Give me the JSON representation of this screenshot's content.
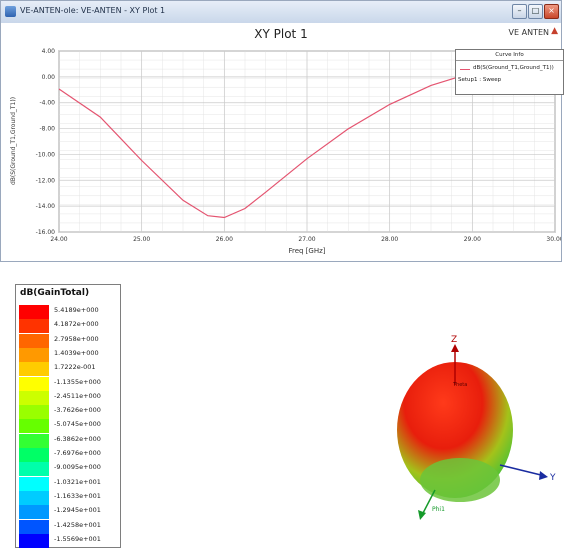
{
  "window": {
    "title": "VE-ANTEN-ole: VE-ANTEN - XY Plot 1",
    "minimize_glyph": "–",
    "maximize_glyph": "□",
    "close_glyph": "×"
  },
  "plot": {
    "title": "XY Plot 1",
    "brand": "VE ANTEN",
    "brand_mark": "▲",
    "legend": {
      "header": "Curve Info",
      "entries": [
        {
          "label": "dB(S(Ground_T1,Ground_T1))",
          "color": "#e45470"
        }
      ],
      "setup": "Setup1 : Sweep"
    }
  },
  "chart_data": {
    "type": "line",
    "title": "XY Plot 1",
    "xlabel": "Freq [GHz]",
    "ylabel": "dB(S(Ground_T1,Ground_T1))",
    "xlim": [
      24.0,
      30.0
    ],
    "ylim": [
      -16.0,
      4.0
    ],
    "x_ticks": [
      "24.00",
      "25.00",
      "26.00",
      "27.00",
      "28.00",
      "29.00",
      "30.00"
    ],
    "y_ticks": [
      "4.00",
      "0.00",
      "-4.00",
      "-8.00",
      "-10.00",
      "-12.00",
      "-14.00",
      "-16.00"
    ],
    "grid": true,
    "legend_position": "top-right",
    "series": [
      {
        "name": "dB(S(Ground_T1,Ground_T1))",
        "color": "#e45470",
        "x": [
          24.0,
          24.5,
          25.0,
          25.5,
          25.8,
          26.0,
          26.25,
          26.5,
          27.0,
          27.5,
          28.0,
          28.5,
          29.0,
          29.5,
          30.0
        ],
        "y": [
          -0.2,
          -3.3,
          -8.1,
          -12.5,
          -14.2,
          -14.4,
          -13.4,
          -11.6,
          -7.9,
          -4.6,
          -1.9,
          0.2,
          1.6,
          2.3,
          2.4
        ]
      }
    ]
  },
  "colorbar": {
    "title": "dB(GainTotal)",
    "entries": [
      {
        "label": "5.4189e+000",
        "color": "#ff0000"
      },
      {
        "label": "4.1872e+000",
        "color": "#ff3300"
      },
      {
        "label": "2.7958e+000",
        "color": "#ff6600"
      },
      {
        "label": "1.4039e+000",
        "color": "#ff9900"
      },
      {
        "label": "1.7222e-001",
        "color": "#ffcc00"
      },
      {
        "label": "-1.1355e+000",
        "color": "#ffff00"
      },
      {
        "label": "-2.4511e+000",
        "color": "#ccff00"
      },
      {
        "label": "-3.7626e+000",
        "color": "#99ff00"
      },
      {
        "label": "-5.0745e+000",
        "color": "#66ff00"
      },
      {
        "label": "-6.3862e+000",
        "color": "#33ff33"
      },
      {
        "label": "-7.6976e+000",
        "color": "#00ff66"
      },
      {
        "label": "-9.0095e+000",
        "color": "#00ffaa"
      },
      {
        "label": "-1.0321e+001",
        "color": "#00ffff"
      },
      {
        "label": "-1.1633e+001",
        "color": "#00ccff"
      },
      {
        "label": "-1.2945e+001",
        "color": "#0099ff"
      },
      {
        "label": "-1.4258e+001",
        "color": "#0055ff"
      },
      {
        "label": "-1.5569e+001",
        "color": "#0000ff"
      }
    ]
  },
  "pattern3d": {
    "axis_z": "Z",
    "axis_y": "Y",
    "axis_x": "Phi1",
    "marker": "Theta"
  }
}
